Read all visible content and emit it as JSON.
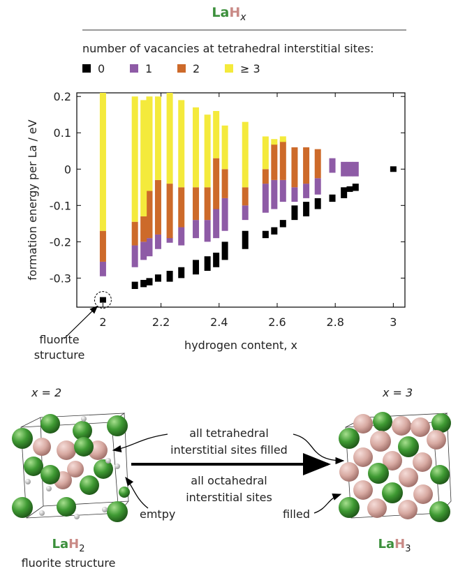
{
  "header": {
    "title": {
      "la": "La",
      "h": "H",
      "sub": "x"
    },
    "legend_heading": "number of vacancies at tetrahedral interstitial sites:"
  },
  "chart_data": {
    "type": "floating-bar",
    "ylabel": "formation energy per La / eV",
    "xlabel": "hydrogen content, x",
    "annotation": [
      "fluorite",
      "structure"
    ],
    "x": [
      2,
      2.11,
      2.14,
      2.16,
      2.19,
      2.23,
      2.27,
      2.32,
      2.36,
      2.39,
      2.42,
      2.49,
      2.56,
      2.59,
      2.62,
      2.66,
      2.7,
      2.74,
      2.79,
      2.83,
      2.85,
      2.87,
      3
    ],
    "xlim": [
      1.91,
      3.04
    ],
    "xticks": [
      2,
      2.2,
      2.4,
      2.6,
      2.8,
      3
    ],
    "ylim": [
      -0.38,
      0.21
    ],
    "yticks": [
      0.2,
      0.1,
      0,
      -0.1,
      -0.2,
      -0.3
    ],
    "series": [
      {
        "name": "0",
        "color": "#000000",
        "low": [
          -0.36,
          -0.33,
          -0.325,
          -0.32,
          -0.31,
          -0.31,
          -0.3,
          -0.29,
          -0.28,
          -0.27,
          -0.25,
          -0.22,
          -0.19,
          -0.18,
          -0.16,
          -0.14,
          -0.13,
          -0.11,
          -0.09,
          -0.08,
          -0.06,
          -0.06,
          0
        ],
        "high": [
          -0.36,
          -0.31,
          -0.305,
          -0.3,
          -0.29,
          -0.28,
          -0.27,
          -0.25,
          -0.24,
          -0.23,
          -0.2,
          -0.17,
          -0.17,
          -0.16,
          -0.14,
          -0.1,
          -0.09,
          -0.08,
          -0.07,
          -0.05,
          -0.05,
          -0.04,
          0
        ]
      },
      {
        "name": "1",
        "color": "#8e5ba6",
        "low": [
          -0.295,
          -0.27,
          -0.25,
          -0.24,
          -0.22,
          -0.2,
          -0.21,
          -0.19,
          -0.2,
          -0.19,
          -0.17,
          -0.14,
          -0.12,
          -0.11,
          -0.09,
          -0.09,
          -0.08,
          -0.07,
          -0.01,
          -0.02,
          -0.02,
          -0.02,
          null
        ],
        "high": [
          -0.255,
          -0.21,
          -0.2,
          -0.19,
          -0.18,
          -0.19,
          -0.16,
          -0.14,
          -0.14,
          -0.11,
          -0.08,
          -0.1,
          -0.04,
          -0.03,
          -0.03,
          -0.05,
          -0.04,
          -0.025,
          0.03,
          0.02,
          0.02,
          0.02,
          null
        ]
      },
      {
        "name": "2",
        "color": "#cd6a2a",
        "low": [
          -0.255,
          -0.21,
          -0.2,
          -0.19,
          -0.18,
          -0.19,
          -0.16,
          -0.14,
          -0.14,
          -0.11,
          -0.08,
          -0.1,
          -0.04,
          -0.03,
          -0.03,
          -0.05,
          -0.04,
          -0.025,
          null,
          null,
          null,
          null,
          null
        ],
        "high": [
          -0.17,
          -0.145,
          -0.13,
          -0.06,
          -0.03,
          -0.04,
          -0.05,
          -0.05,
          -0.05,
          0.03,
          0,
          -0.05,
          0,
          0.07,
          0.08,
          0.06,
          0.06,
          0.055,
          null,
          null,
          null,
          null,
          null
        ]
      },
      {
        "name": "≥ 3",
        "color": "#f4ea3c",
        "low": [
          -0.17,
          -0.145,
          -0.13,
          -0.06,
          -0.03,
          -0.04,
          -0.05,
          -0.05,
          -0.05,
          0.03,
          0,
          -0.05,
          0,
          0.07,
          0.08,
          null,
          null,
          null,
          null,
          null,
          null,
          null,
          null
        ],
        "high": [
          0.21,
          0.2,
          0.19,
          0.2,
          0.2,
          0.21,
          0.19,
          0.17,
          0.15,
          0.16,
          0.12,
          0.13,
          0.09,
          0.08,
          0.085,
          null,
          null,
          null,
          null,
          null,
          null,
          null,
          null
        ]
      }
    ]
  },
  "diagram": {
    "left_x": "x = 2",
    "right_x": "x = 3",
    "tetra": [
      "all tetrahedral",
      "interstitial sites filled"
    ],
    "octa": [
      "all octahedral",
      "interstitial sites",
      "filled"
    ],
    "empty": "emtpy",
    "left_formula": {
      "la": "La",
      "h": "H",
      "sub": "2"
    },
    "left_caption": "fluorite structure",
    "right_formula": {
      "la": "La",
      "h": "H",
      "sub": "3"
    }
  }
}
